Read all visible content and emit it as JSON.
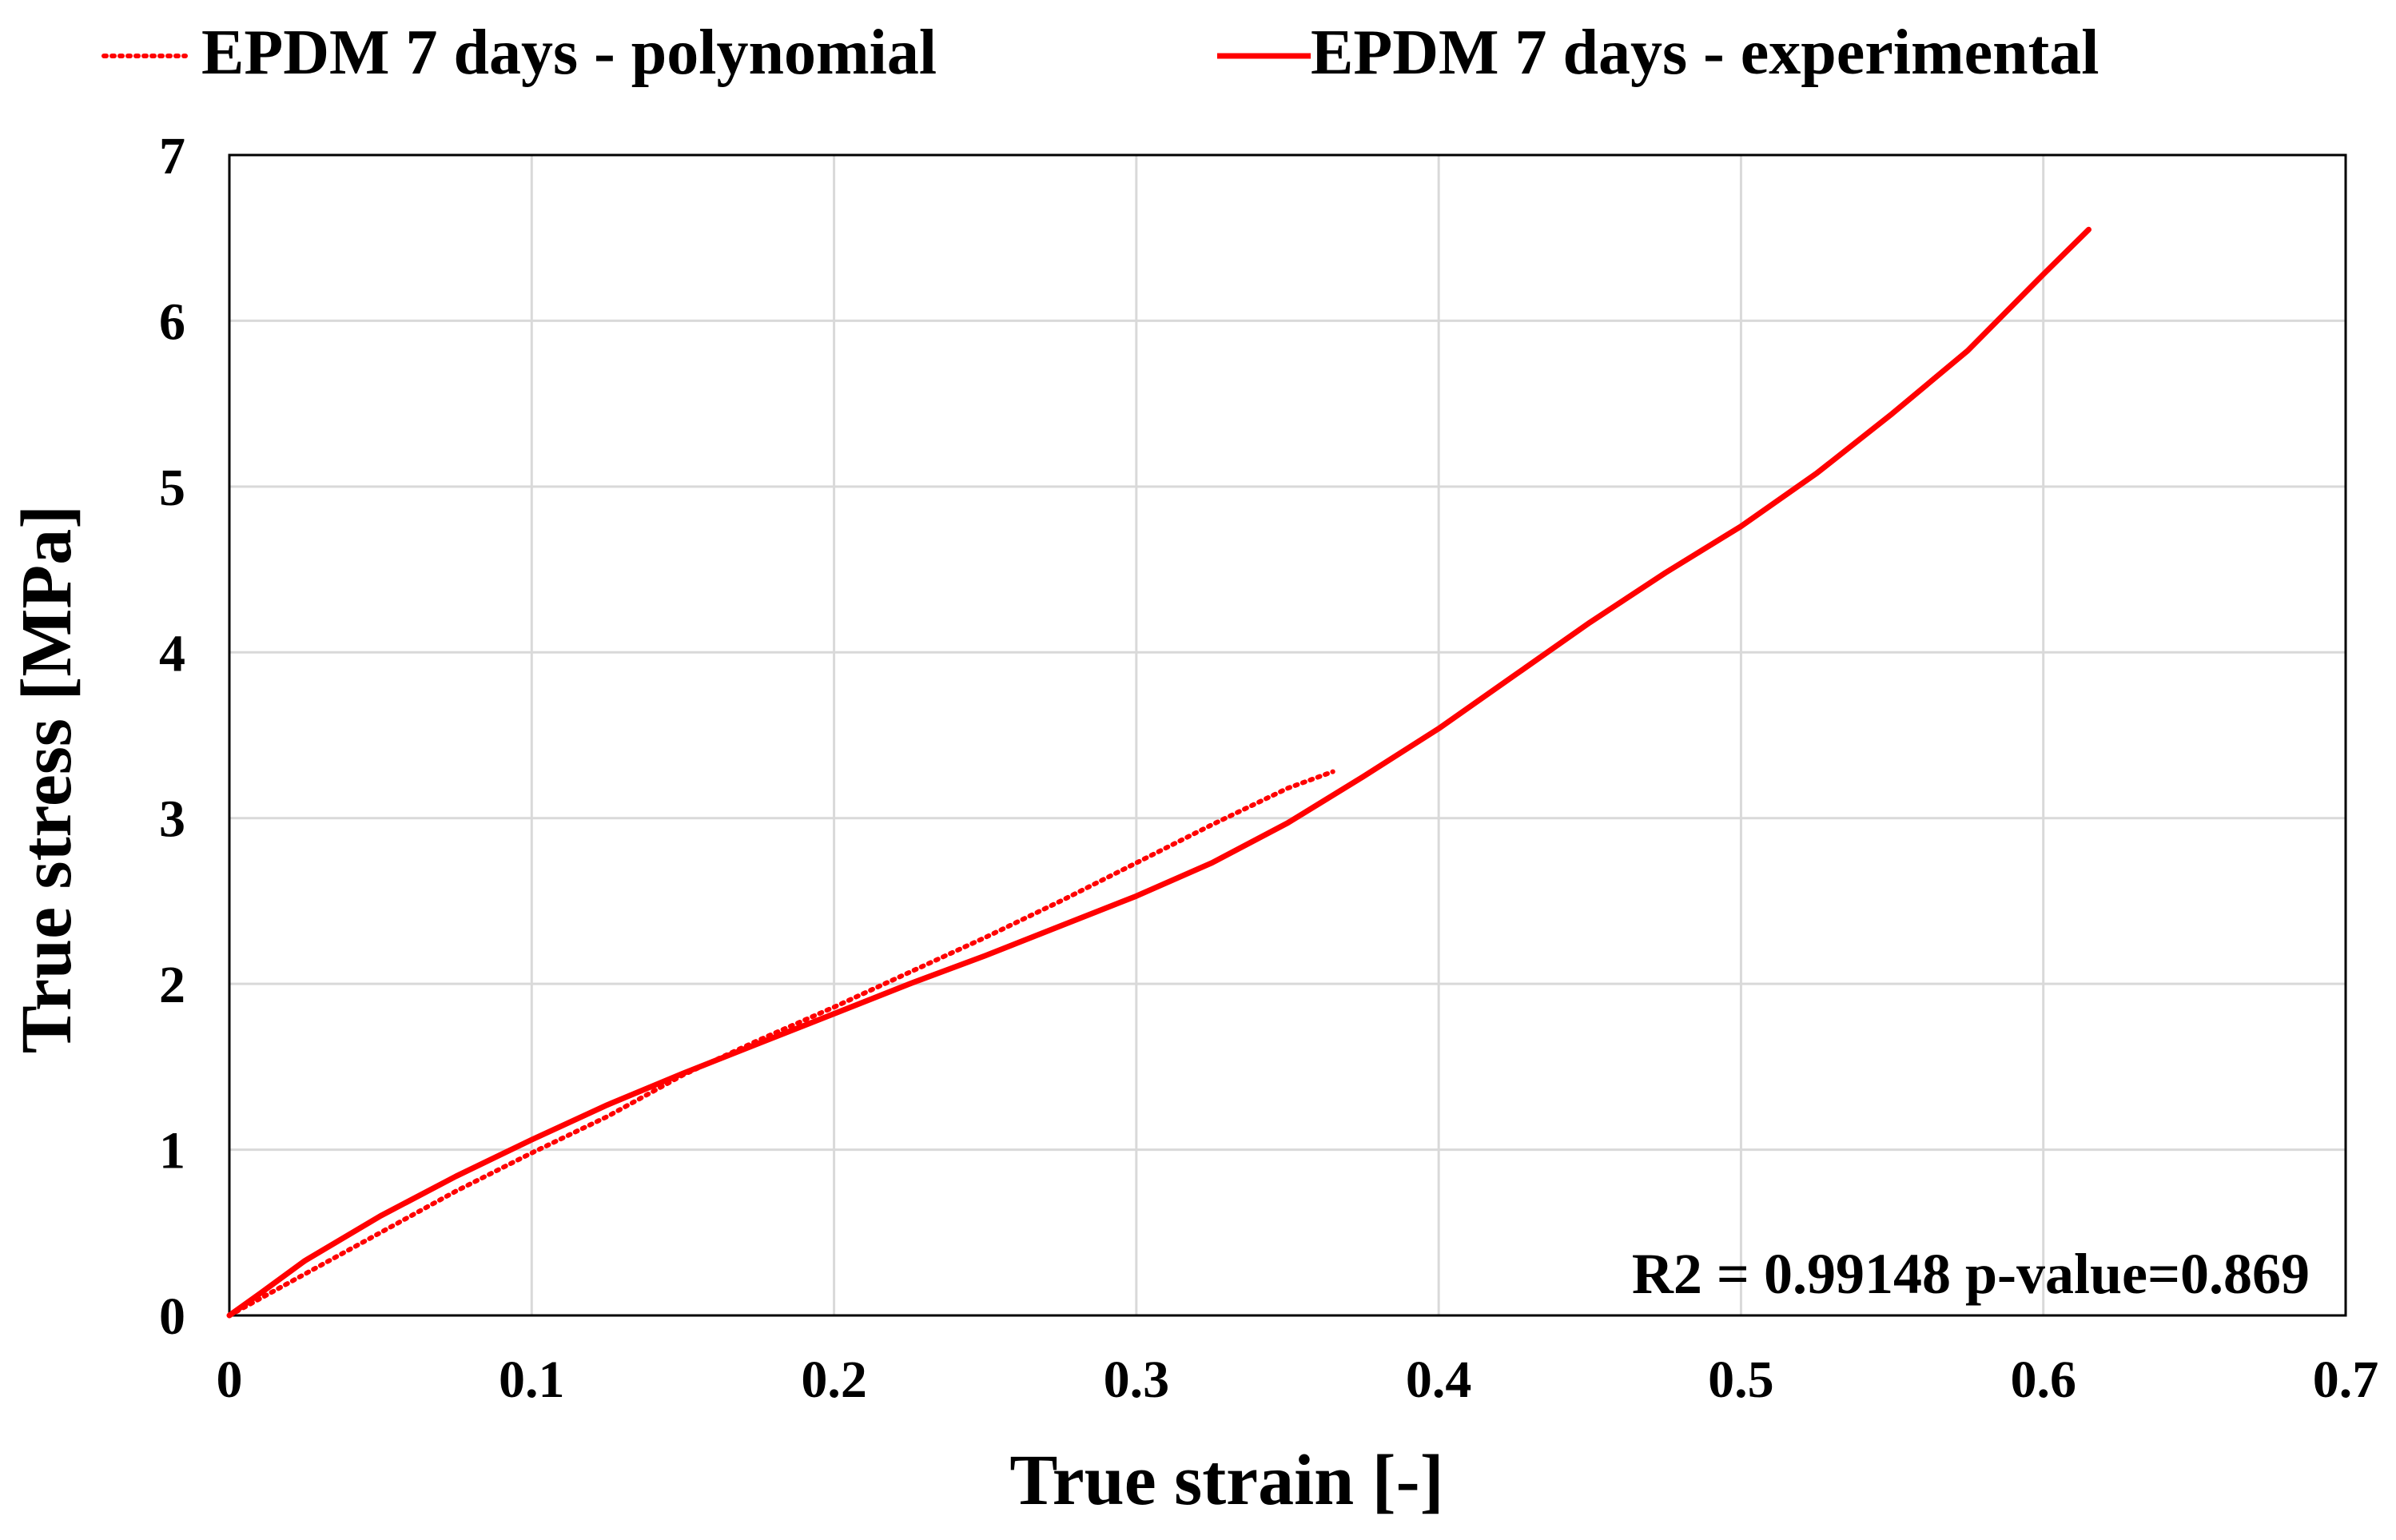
{
  "chart_data": {
    "type": "line",
    "xlabel": "True strain [-]",
    "ylabel": "True stress [MPa]",
    "xlim": [
      0,
      0.7
    ],
    "ylim": [
      0,
      7
    ],
    "x_ticks": [
      "0",
      "0.1",
      "0.2",
      "0.3",
      "0.4",
      "0.5",
      "0.6",
      "0.7"
    ],
    "y_ticks": [
      "0",
      "1",
      "2",
      "3",
      "4",
      "5",
      "6",
      "7"
    ],
    "grid": true,
    "legend_position": "top",
    "annotation": "R2 = 0.99148 p-value=0.869",
    "series": [
      {
        "name": "EPDM 7 days - polynomial",
        "style": "dotted",
        "color": "#ff0000",
        "x": [
          0,
          0.025,
          0.05,
          0.075,
          0.1,
          0.125,
          0.15,
          0.175,
          0.2,
          0.225,
          0.25,
          0.275,
          0.3,
          0.325,
          0.35,
          0.365
        ],
        "y": [
          0,
          0.25,
          0.5,
          0.75,
          0.98,
          1.2,
          1.45,
          1.66,
          1.86,
          2.07,
          2.28,
          2.5,
          2.73,
          2.96,
          3.18,
          3.28
        ]
      },
      {
        "name": "EPDM 7 days - experimental",
        "style": "solid",
        "color": "#ff0000",
        "x": [
          0,
          0.01,
          0.025,
          0.05,
          0.075,
          0.1,
          0.125,
          0.15,
          0.175,
          0.2,
          0.225,
          0.25,
          0.275,
          0.3,
          0.325,
          0.35,
          0.375,
          0.4,
          0.425,
          0.45,
          0.475,
          0.5,
          0.525,
          0.55,
          0.575,
          0.6,
          0.615
        ],
        "y": [
          0,
          0.13,
          0.33,
          0.6,
          0.84,
          1.06,
          1.27,
          1.46,
          1.64,
          1.82,
          2.0,
          2.17,
          2.35,
          2.53,
          2.73,
          2.97,
          3.25,
          3.54,
          3.86,
          4.18,
          4.48,
          4.76,
          5.08,
          5.44,
          5.82,
          6.28,
          6.55
        ]
      }
    ]
  }
}
